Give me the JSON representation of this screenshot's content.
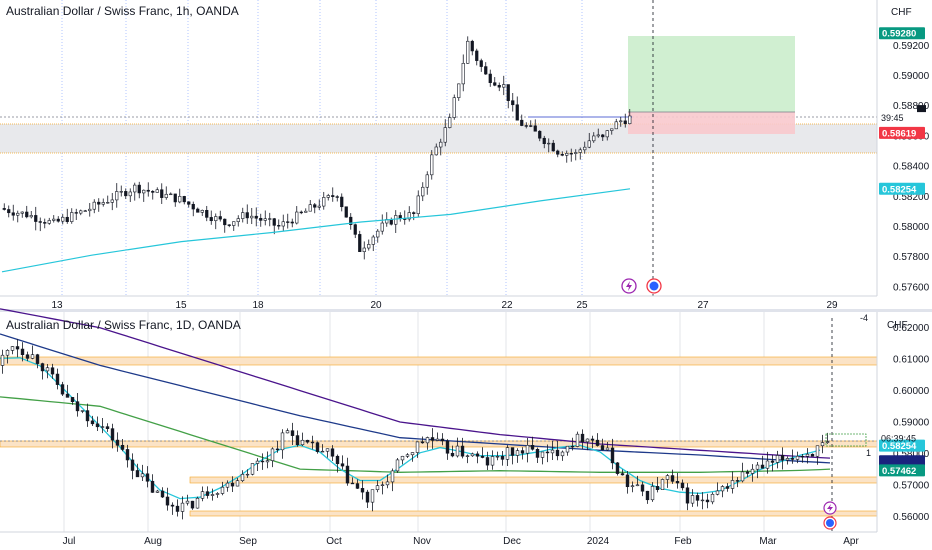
{
  "top_chart": {
    "title": "Australian Dollar / Swiss Franc, 1h, OANDA",
    "currency": "CHF",
    "price_badges": [
      {
        "label": "0.59280",
        "price": 0.5928,
        "color": "#089981"
      },
      {
        "label": "0.58619",
        "price": 0.5862,
        "color": "#f23645"
      },
      {
        "label": "0.58254",
        "price": 0.5825,
        "color": "#26c6da"
      }
    ],
    "countdown": "39:45",
    "countdown_price": 0.58718,
    "ma_color": "#26c6da"
  },
  "bottom_chart": {
    "title": "Australian Dollar / Swiss Franc, 1D, OANDA",
    "currency": "CHF",
    "price_badges": [
      {
        "label": "0.58254",
        "price": 0.5825,
        "color": "#26c6da"
      },
      {
        "label": "",
        "price": 0.5775,
        "color": "#1a237e"
      },
      {
        "label": "0.57462",
        "price": 0.5746,
        "color": "#089981"
      }
    ],
    "countdown": "06:39:45",
    "countdown_price": 0.5847,
    "label_1": "1",
    "label_minus4": "-4"
  },
  "chart_data": [
    {
      "type": "line",
      "title": "Australian Dollar / Swiss Franc, 1h, OANDA",
      "x_ticks": [
        "13",
        "15",
        "18",
        "20",
        "22",
        "25",
        "27",
        "29"
      ],
      "y_ticks": [
        0.592,
        0.59,
        0.588,
        0.586,
        0.584,
        0.582,
        0.58,
        0.578,
        0.576
      ],
      "ylim": [
        0.5754,
        0.595
      ],
      "series": [
        {
          "x": [
            0,
            6,
            12,
            20,
            30,
            40,
            50,
            55,
            62,
            68,
            75,
            80,
            85,
            88,
            92,
            96,
            100,
            104,
            108,
            112,
            115,
            120
          ],
          "values": [
            0.5812,
            0.5808,
            0.5802,
            0.5812,
            0.5826,
            0.5818,
            0.5802,
            0.5808,
            0.58,
            0.581,
            0.5822,
            0.5785,
            0.58,
            0.5806,
            0.5808,
            0.5846,
            0.587,
            0.5922,
            0.59,
            0.5893,
            0.587,
            0.586
          ]
        },
        {
          "x": [
            120,
            124,
            128,
            132,
            134,
            136,
            138,
            140
          ],
          "values": [
            0.586,
            0.585,
            0.5848,
            0.586,
            0.5858,
            0.5866,
            0.587,
            0.5872
          ]
        },
        {
          "x": [
            0,
            20,
            40,
            60,
            80,
            100,
            120,
            140
          ],
          "values": [
            0.577,
            0.5781,
            0.579,
            0.5796,
            0.5803,
            0.5808,
            0.5817,
            0.5825
          ]
        }
      ]
    },
    {
      "type": "line",
      "title": "Australian Dollar / Swiss Franc, 1D, OANDA",
      "x_ticks": [
        "Jul",
        "Aug",
        "Sep",
        "Oct",
        "Nov",
        "Dec",
        "2024",
        "Feb",
        "Mar",
        "Apr"
      ],
      "y_ticks": [
        0.62,
        0.61,
        0.6,
        0.59,
        0.58,
        0.57,
        0.56
      ],
      "ylim": [
        0.555,
        0.625
      ],
      "series": [
        {
          "x": [
            0,
            3,
            8,
            15,
            20,
            23,
            26,
            30,
            34,
            38,
            42,
            46,
            50,
            54,
            58,
            62,
            66,
            70,
            74,
            78,
            82,
            86,
            90,
            94,
            98,
            102,
            106,
            110,
            114,
            118,
            122,
            126,
            130,
            134,
            138,
            142,
            146,
            150,
            154,
            158,
            162,
            166
          ],
          "values": [
            0.608,
            0.615,
            0.61,
            0.595,
            0.59,
            0.585,
            0.578,
            0.57,
            0.564,
            0.563,
            0.568,
            0.57,
            0.575,
            0.579,
            0.587,
            0.582,
            0.58,
            0.572,
            0.565,
            0.572,
            0.58,
            0.585,
            0.581,
            0.58,
            0.577,
            0.58,
            0.581,
            0.579,
            0.583,
            0.586,
            0.58,
            0.57,
            0.567,
            0.572,
            0.566,
            0.564,
            0.57,
            0.574,
            0.576,
            0.579,
            0.58,
            0.5825
          ]
        },
        {
          "x": [
            0,
            20,
            40,
            60,
            80,
            100,
            120,
            140,
            160,
            166
          ],
          "values": [
            0.618,
            0.608,
            0.6,
            0.592,
            0.585,
            0.583,
            0.581,
            0.5795,
            0.5775,
            0.577
          ]
        },
        {
          "x": [
            0,
            20,
            40,
            60,
            80,
            100,
            120,
            140,
            160,
            166
          ],
          "values": [
            0.626,
            0.62,
            0.61,
            0.6,
            0.59,
            0.586,
            0.583,
            0.581,
            0.579,
            0.5785
          ]
        },
        {
          "x": [
            0,
            20,
            40,
            60,
            80,
            100,
            120,
            140,
            160,
            166
          ],
          "values": [
            0.598,
            0.595,
            0.585,
            0.575,
            0.574,
            0.5745,
            0.574,
            0.574,
            0.5746,
            0.575
          ]
        }
      ]
    }
  ]
}
